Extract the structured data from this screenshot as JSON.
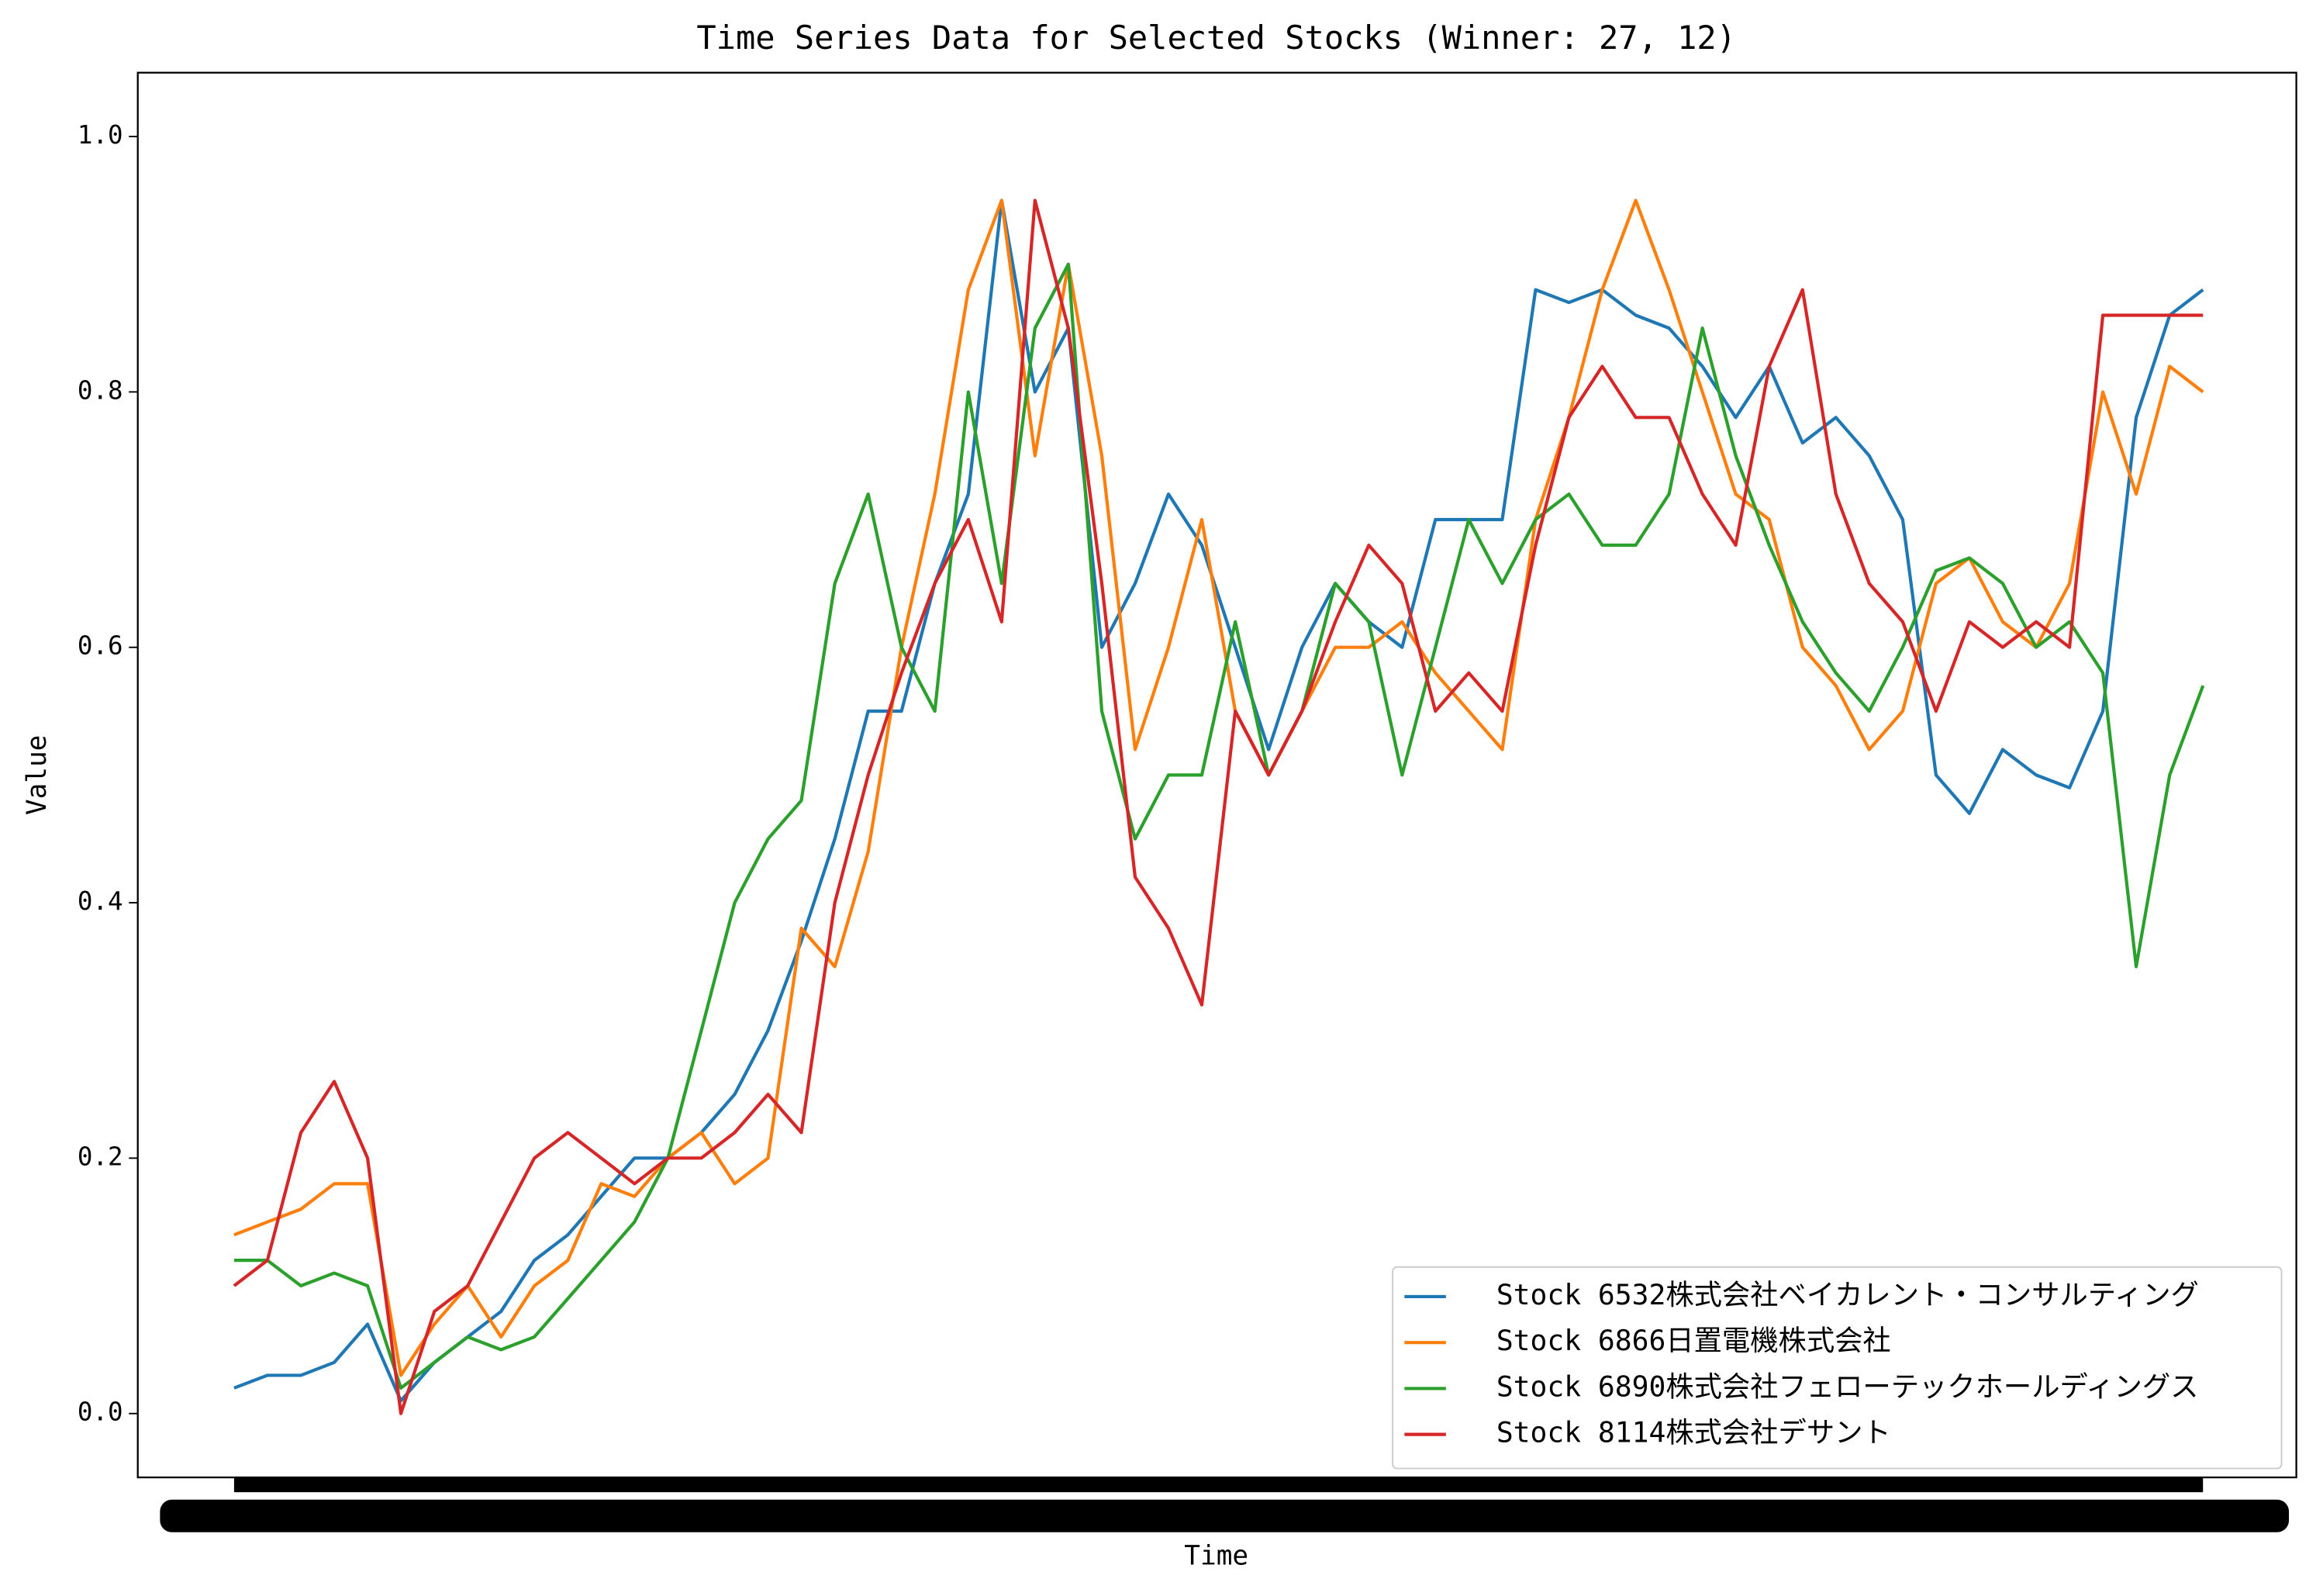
{
  "chart_data": {
    "type": "line",
    "title": "Time Series Data for Selected Stocks (Winner: 27, 12)",
    "xlabel": "Time",
    "ylabel": "Value",
    "ylim": [
      -0.05,
      1.05
    ],
    "yticks": [
      {
        "value": 0,
        "label": "0.0"
      },
      0.2,
      0.4,
      0.6,
      0.8,
      {
        "value": 1,
        "label": "1.0"
      }
    ],
    "legend": "lower right",
    "series": [
      {
        "name": "Stock 6532株式会社ベイカレント・コンサルティング",
        "color": "#1f77b4",
        "values": [
          0.02,
          0.03,
          0.03,
          0.04,
          0.07,
          0.01,
          0.04,
          0.06,
          0.08,
          0.12,
          0.14,
          0.17,
          0.2,
          0.2,
          0.22,
          0.25,
          0.3,
          0.37,
          0.45,
          0.55,
          0.55,
          0.65,
          0.72,
          0.95,
          0.8,
          0.85,
          0.6,
          0.65,
          0.72,
          0.68,
          0.6,
          0.52,
          0.6,
          0.65,
          0.62,
          0.6,
          0.7,
          0.7,
          0.7,
          0.88,
          0.87,
          0.88,
          0.86,
          0.85,
          0.82,
          0.78,
          0.82,
          0.76,
          0.78,
          0.75,
          0.7,
          0.5,
          0.47,
          0.52,
          0.5,
          0.49,
          0.55,
          0.78,
          0.86,
          0.88
        ]
      },
      {
        "name": "Stock 6866日置電機株式会社",
        "color": "#ff7f0e",
        "values": [
          0.14,
          0.15,
          0.16,
          0.18,
          0.18,
          0.03,
          0.07,
          0.1,
          0.06,
          0.1,
          0.12,
          0.18,
          0.17,
          0.2,
          0.22,
          0.18,
          0.2,
          0.38,
          0.35,
          0.44,
          0.6,
          0.72,
          0.88,
          0.95,
          0.75,
          0.9,
          0.75,
          0.52,
          0.6,
          0.7,
          0.55,
          0.5,
          0.55,
          0.6,
          0.6,
          0.62,
          0.58,
          0.55,
          0.52,
          0.7,
          0.78,
          0.88,
          0.95,
          0.88,
          0.8,
          0.72,
          0.7,
          0.6,
          0.57,
          0.52,
          0.55,
          0.65,
          0.67,
          0.62,
          0.6,
          0.65,
          0.8,
          0.72,
          0.82,
          0.8
        ]
      },
      {
        "name": "Stock 6890株式会社フェローテックホールディングス",
        "color": "#2ca02c",
        "values": [
          0.12,
          0.12,
          0.1,
          0.11,
          0.1,
          0.02,
          0.04,
          0.06,
          0.05,
          0.06,
          0.09,
          0.12,
          0.15,
          0.2,
          0.3,
          0.4,
          0.45,
          0.48,
          0.65,
          0.72,
          0.6,
          0.55,
          0.8,
          0.65,
          0.85,
          0.9,
          0.55,
          0.45,
          0.5,
          0.5,
          0.62,
          0.5,
          0.55,
          0.65,
          0.62,
          0.5,
          0.6,
          0.7,
          0.65,
          0.7,
          0.72,
          0.68,
          0.68,
          0.72,
          0.85,
          0.75,
          0.68,
          0.62,
          0.58,
          0.55,
          0.6,
          0.66,
          0.67,
          0.65,
          0.6,
          0.62,
          0.58,
          0.35,
          0.5,
          0.57
        ]
      },
      {
        "name": "Stock 8114株式会社デサント",
        "color": "#d62728",
        "values": [
          0.1,
          0.12,
          0.22,
          0.26,
          0.2,
          0.0,
          0.08,
          0.1,
          0.15,
          0.2,
          0.22,
          0.2,
          0.18,
          0.2,
          0.2,
          0.22,
          0.25,
          0.22,
          0.4,
          0.5,
          0.58,
          0.65,
          0.7,
          0.62,
          0.95,
          0.85,
          0.65,
          0.42,
          0.38,
          0.32,
          0.55,
          0.5,
          0.55,
          0.62,
          0.68,
          0.65,
          0.55,
          0.58,
          0.55,
          0.68,
          0.78,
          0.82,
          0.78,
          0.78,
          0.72,
          0.68,
          0.82,
          0.88,
          0.72,
          0.65,
          0.62,
          0.55,
          0.62,
          0.6,
          0.62,
          0.6,
          0.86,
          0.86,
          0.86,
          0.86
        ]
      }
    ]
  }
}
